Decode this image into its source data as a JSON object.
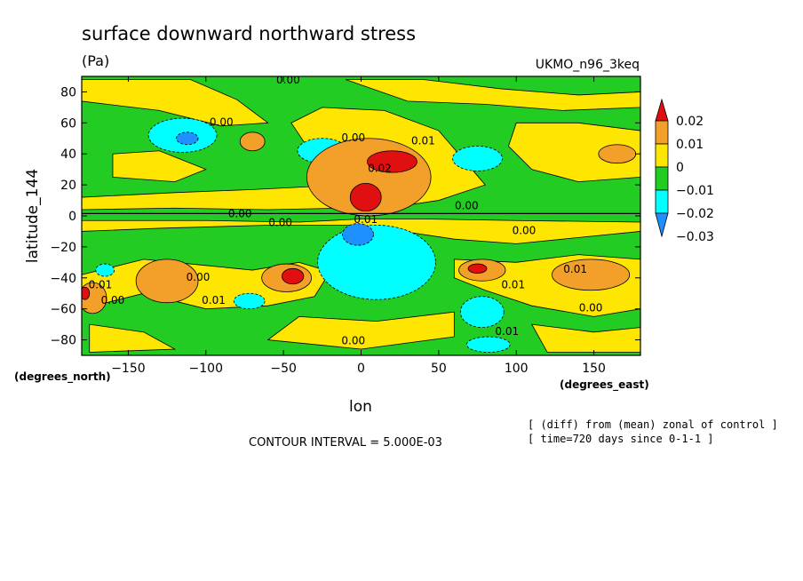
{
  "chart_data": {
    "type": "heatmap",
    "title": "surface downward northward stress",
    "units": "(Pa)",
    "dataset": "UKMO_n96_3keq",
    "xlabel": "lon",
    "ylabel": "latitude_144",
    "x_units": "(degrees_east)",
    "y_units": "(degrees_north)",
    "xlim": [
      -180,
      180
    ],
    "ylim": [
      -90,
      90
    ],
    "xticks": [
      -150,
      -100,
      -50,
      0,
      50,
      100,
      150
    ],
    "yticks": [
      80,
      60,
      40,
      20,
      0,
      -20,
      -40,
      -60,
      -80
    ],
    "contour_interval_text": "CONTOUR INTERVAL = 5.000E-03",
    "notes": [
      "[ (diff) from (mean) zonal of control ]",
      "[ time=720 days since 0-1-1 ]"
    ],
    "colorbar": {
      "levels": [
        -0.03,
        -0.02,
        -0.01,
        0,
        0.01,
        0.02
      ],
      "labels": [
        "0.02",
        "0.01",
        "0",
        "−0.01",
        "−0.02",
        "−0.03"
      ],
      "colors": [
        "#e01010",
        "#f2a02a",
        "#ffe600",
        "#22cc22",
        "#00ffff",
        "#1e90ff"
      ]
    },
    "contour_labels": [
      {
        "text": "0.00",
        "lon": -47,
        "lat": 87
      },
      {
        "text": "0.00",
        "lon": -78,
        "lat": 1
      },
      {
        "text": "0.00",
        "lon": -52,
        "lat": -5
      },
      {
        "text": "0.00",
        "lon": -5,
        "lat": -81
      },
      {
        "text": "0.00",
        "lon": 68,
        "lat": 6
      },
      {
        "text": "0.00",
        "lon": 105,
        "lat": -10
      },
      {
        "text": "0.00",
        "lon": -5,
        "lat": 50
      },
      {
        "text": "0.00",
        "lon": -90,
        "lat": 60
      },
      {
        "text": "0.00",
        "lon": -105,
        "lat": -40
      },
      {
        "text": "0.00",
        "lon": -160,
        "lat": -55
      },
      {
        "text": "0.00",
        "lon": 148,
        "lat": -60
      },
      {
        "text": "0.01",
        "lon": 40,
        "lat": 48
      },
      {
        "text": "0.02",
        "lon": 12,
        "lat": 30
      },
      {
        "text": "0.01",
        "lon": 3,
        "lat": -3
      },
      {
        "text": "0.01",
        "lon": -95,
        "lat": -55
      },
      {
        "text": "0.01",
        "lon": 98,
        "lat": -45
      },
      {
        "text": "0.01",
        "lon": 138,
        "lat": -35
      },
      {
        "text": "0.01",
        "lon": 94,
        "lat": -75
      },
      {
        "text": "0.01",
        "lon": -168,
        "lat": -45
      }
    ],
    "anomaly_regions": [
      {
        "category": "-0.02",
        "lon": -115,
        "lat": 52,
        "rlon": 22,
        "rlat": 11
      },
      {
        "category": "-0.03",
        "lon": -112,
        "lat": 50,
        "rlon": 7,
        "rlat": 4
      },
      {
        "category": "-0.02",
        "lon": -25,
        "lat": 42,
        "rlon": 16,
        "rlat": 8
      },
      {
        "category": "-0.02",
        "lon": 75,
        "lat": 37,
        "rlon": 16,
        "rlat": 8
      },
      {
        "category": "-0.02",
        "lon": 10,
        "lat": -30,
        "rlon": 38,
        "rlat": 24
      },
      {
        "category": "-0.03",
        "lon": -2,
        "lat": -12,
        "rlon": 10,
        "rlat": 7
      },
      {
        "category": "-0.02",
        "lon": 78,
        "lat": -62,
        "rlon": 14,
        "rlat": 10
      },
      {
        "category": "-0.02",
        "lon": 82,
        "lat": -83,
        "rlon": 14,
        "rlat": 5
      },
      {
        "category": "-0.02",
        "lon": -72,
        "lat": -55,
        "rlon": 10,
        "rlat": 5
      },
      {
        "category": "-0.02",
        "lon": -165,
        "lat": -35,
        "rlon": 6,
        "rlat": 4
      },
      {
        "category": "0.01",
        "lon": 5,
        "lat": 25,
        "rlon": 40,
        "rlat": 25
      },
      {
        "category": "0.02",
        "lon": 20,
        "lat": 35,
        "rlon": 16,
        "rlat": 7
      },
      {
        "category": "0.02",
        "lon": 3,
        "lat": 12,
        "rlon": 10,
        "rlat": 9
      },
      {
        "category": "0.01",
        "lon": -125,
        "lat": -42,
        "rlon": 20,
        "rlat": 14
      },
      {
        "category": "0.01",
        "lon": -48,
        "lat": -40,
        "rlon": 16,
        "rlat": 9
      },
      {
        "category": "0.02",
        "lon": -44,
        "lat": -39,
        "rlon": 7,
        "rlat": 5
      },
      {
        "category": "0.01",
        "lon": 78,
        "lat": -35,
        "rlon": 15,
        "rlat": 7
      },
      {
        "category": "0.02",
        "lon": 75,
        "lat": -34,
        "rlon": 6,
        "rlat": 3
      },
      {
        "category": "0.01",
        "lon": 148,
        "lat": -38,
        "rlon": 25,
        "rlat": 10
      },
      {
        "category": "0.01",
        "lon": -173,
        "lat": -53,
        "rlon": 9,
        "rlat": 10
      },
      {
        "category": "0.02",
        "lon": -178,
        "lat": -50,
        "rlon": 3,
        "rlat": 4
      },
      {
        "category": "0.01",
        "lon": -70,
        "lat": 48,
        "rlon": 8,
        "rlat": 6
      },
      {
        "category": "0.01",
        "lon": 165,
        "lat": 40,
        "rlon": 12,
        "rlat": 6
      }
    ]
  }
}
